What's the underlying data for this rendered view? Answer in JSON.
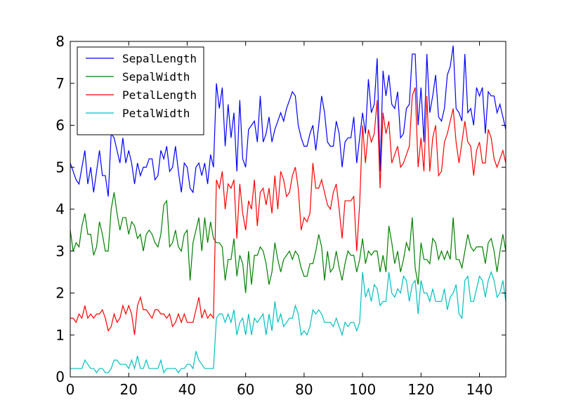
{
  "chart_data": {
    "type": "line",
    "title": "",
    "xlabel": "",
    "ylabel": "",
    "xlim": [
      0,
      149
    ],
    "ylim": [
      0,
      8
    ],
    "x_ticks": [
      0,
      20,
      40,
      60,
      80,
      100,
      120,
      140
    ],
    "y_ticks": [
      0,
      1,
      2,
      3,
      4,
      5,
      6,
      7,
      8
    ],
    "x_tick_labels": [
      "0",
      "20",
      "40",
      "60",
      "80",
      "100",
      "120",
      "140"
    ],
    "y_tick_labels": [
      "0",
      "1",
      "2",
      "3",
      "4",
      "5",
      "6",
      "7",
      "8"
    ],
    "grid": false,
    "legend_position": "top-left",
    "series": [
      {
        "name": "SepalLength",
        "color": "#0000ff",
        "values": [
          5.1,
          4.9,
          4.7,
          4.6,
          5.0,
          5.4,
          4.6,
          5.0,
          4.4,
          4.9,
          5.4,
          4.8,
          4.8,
          4.3,
          5.8,
          5.7,
          5.4,
          5.1,
          5.7,
          5.1,
          5.4,
          5.1,
          4.6,
          5.1,
          4.8,
          5.0,
          5.0,
          5.2,
          5.2,
          4.7,
          4.8,
          5.4,
          5.2,
          5.5,
          4.9,
          5.0,
          5.5,
          4.9,
          4.4,
          5.1,
          5.0,
          4.5,
          4.4,
          5.0,
          5.1,
          4.8,
          5.1,
          4.6,
          5.3,
          5.0,
          7.0,
          6.4,
          6.9,
          5.5,
          6.5,
          5.7,
          6.3,
          4.9,
          6.6,
          5.2,
          5.0,
          5.9,
          6.0,
          6.1,
          5.6,
          6.7,
          5.6,
          5.8,
          6.2,
          5.6,
          5.9,
          6.1,
          6.3,
          6.1,
          6.4,
          6.6,
          6.8,
          6.7,
          6.0,
          5.7,
          5.5,
          5.5,
          5.8,
          6.0,
          5.4,
          6.0,
          6.7,
          6.3,
          5.6,
          5.5,
          5.5,
          6.1,
          5.8,
          5.0,
          5.6,
          5.7,
          5.7,
          6.2,
          5.1,
          5.7,
          6.3,
          5.8,
          7.1,
          6.3,
          6.5,
          7.6,
          4.9,
          7.3,
          6.7,
          7.2,
          6.5,
          6.4,
          6.8,
          5.7,
          5.8,
          6.4,
          6.5,
          7.7,
          7.7,
          6.0,
          6.9,
          5.6,
          7.7,
          6.3,
          6.7,
          7.2,
          6.2,
          6.1,
          6.4,
          7.2,
          7.4,
          7.9,
          6.4,
          6.3,
          6.1,
          7.7,
          6.3,
          6.4,
          6.0,
          6.9,
          6.7,
          6.9,
          5.8,
          6.8,
          6.7,
          6.7,
          6.3,
          6.5,
          6.2,
          5.9
        ]
      },
      {
        "name": "SepalWidth",
        "color": "#008000",
        "values": [
          3.5,
          3.0,
          3.2,
          3.1,
          3.6,
          3.9,
          3.4,
          3.4,
          2.9,
          3.1,
          3.7,
          3.4,
          3.0,
          3.0,
          4.0,
          4.4,
          3.9,
          3.5,
          3.8,
          3.8,
          3.4,
          3.7,
          3.6,
          3.3,
          3.4,
          3.0,
          3.4,
          3.5,
          3.4,
          3.2,
          3.1,
          3.4,
          4.1,
          4.2,
          3.1,
          3.2,
          3.5,
          3.1,
          3.0,
          3.4,
          3.5,
          2.3,
          3.2,
          3.5,
          3.8,
          3.0,
          3.8,
          3.2,
          3.7,
          3.3,
          3.2,
          3.2,
          3.1,
          2.3,
          2.8,
          2.8,
          3.3,
          2.4,
          2.9,
          2.7,
          2.0,
          3.0,
          2.2,
          2.9,
          2.9,
          3.1,
          3.0,
          2.7,
          2.2,
          2.5,
          3.2,
          2.8,
          2.5,
          2.8,
          2.9,
          3.0,
          2.8,
          3.0,
          2.9,
          2.6,
          2.4,
          2.4,
          2.7,
          2.7,
          3.0,
          3.4,
          3.1,
          2.3,
          3.0,
          2.5,
          2.6,
          3.0,
          2.6,
          2.3,
          2.7,
          3.0,
          2.9,
          2.9,
          2.5,
          2.8,
          3.3,
          2.7,
          3.0,
          2.9,
          3.0,
          3.0,
          2.5,
          2.9,
          2.5,
          3.6,
          3.2,
          2.7,
          3.0,
          2.5,
          2.8,
          3.2,
          3.0,
          3.8,
          2.6,
          2.2,
          3.2,
          2.8,
          2.8,
          2.7,
          3.3,
          3.2,
          2.8,
          3.0,
          2.8,
          3.0,
          2.8,
          3.8,
          2.8,
          2.8,
          2.6,
          3.0,
          3.4,
          3.1,
          3.0,
          3.1,
          3.1,
          3.1,
          2.7,
          3.2,
          3.3,
          3.0,
          2.5,
          3.0,
          3.4,
          3.0
        ]
      },
      {
        "name": "PetalLength",
        "color": "#ff0000",
        "values": [
          1.4,
          1.4,
          1.3,
          1.5,
          1.4,
          1.7,
          1.4,
          1.5,
          1.4,
          1.5,
          1.5,
          1.6,
          1.4,
          1.1,
          1.2,
          1.5,
          1.3,
          1.4,
          1.7,
          1.5,
          1.7,
          1.5,
          1.0,
          1.7,
          1.9,
          1.6,
          1.6,
          1.5,
          1.4,
          1.6,
          1.6,
          1.5,
          1.5,
          1.4,
          1.5,
          1.2,
          1.3,
          1.5,
          1.3,
          1.5,
          1.3,
          1.3,
          1.3,
          1.6,
          1.9,
          1.4,
          1.6,
          1.4,
          1.5,
          1.4,
          4.7,
          4.5,
          4.9,
          4.0,
          4.6,
          4.5,
          4.7,
          3.3,
          4.6,
          3.9,
          3.5,
          4.2,
          4.0,
          4.7,
          3.6,
          4.4,
          4.5,
          4.1,
          4.5,
          3.9,
          4.8,
          4.0,
          4.9,
          4.7,
          4.3,
          4.4,
          4.8,
          5.0,
          4.5,
          3.5,
          3.8,
          3.7,
          3.9,
          5.1,
          4.5,
          4.5,
          4.7,
          4.4,
          4.1,
          4.0,
          4.4,
          4.6,
          4.0,
          3.3,
          4.2,
          4.2,
          4.2,
          4.3,
          3.0,
          4.1,
          6.0,
          5.1,
          5.9,
          5.6,
          5.8,
          6.6,
          4.5,
          6.3,
          5.8,
          6.1,
          5.1,
          5.3,
          5.5,
          5.0,
          5.1,
          5.3,
          5.5,
          6.7,
          6.9,
          5.0,
          5.7,
          4.9,
          6.7,
          4.9,
          5.7,
          6.0,
          4.8,
          4.9,
          5.6,
          5.8,
          6.1,
          6.4,
          5.6,
          5.1,
          5.6,
          6.1,
          5.6,
          5.5,
          4.8,
          5.4,
          5.6,
          5.1,
          5.1,
          5.9,
          5.7,
          5.2,
          5.0,
          5.2,
          5.4,
          5.1
        ]
      },
      {
        "name": "PetalWidth",
        "color": "#00bfbf",
        "values": [
          0.2,
          0.2,
          0.2,
          0.2,
          0.2,
          0.4,
          0.3,
          0.2,
          0.2,
          0.1,
          0.2,
          0.2,
          0.1,
          0.1,
          0.2,
          0.4,
          0.4,
          0.3,
          0.3,
          0.3,
          0.2,
          0.4,
          0.2,
          0.5,
          0.2,
          0.2,
          0.4,
          0.2,
          0.2,
          0.2,
          0.2,
          0.4,
          0.1,
          0.2,
          0.2,
          0.2,
          0.2,
          0.1,
          0.2,
          0.2,
          0.3,
          0.3,
          0.2,
          0.6,
          0.4,
          0.3,
          0.2,
          0.2,
          0.2,
          0.2,
          1.4,
          1.5,
          1.5,
          1.3,
          1.5,
          1.3,
          1.6,
          1.0,
          1.3,
          1.4,
          1.0,
          1.5,
          1.0,
          1.4,
          1.3,
          1.4,
          1.5,
          1.0,
          1.5,
          1.1,
          1.8,
          1.3,
          1.5,
          1.2,
          1.3,
          1.4,
          1.4,
          1.7,
          1.5,
          1.0,
          1.1,
          1.0,
          1.2,
          1.6,
          1.5,
          1.6,
          1.5,
          1.3,
          1.3,
          1.3,
          1.2,
          1.4,
          1.2,
          1.0,
          1.3,
          1.2,
          1.3,
          1.3,
          1.1,
          1.3,
          2.5,
          1.9,
          2.1,
          1.8,
          2.2,
          2.1,
          1.7,
          1.8,
          1.8,
          2.5,
          2.0,
          1.9,
          2.1,
          2.0,
          2.4,
          2.3,
          1.8,
          2.2,
          2.3,
          1.5,
          2.3,
          2.0,
          2.0,
          1.8,
          2.1,
          1.8,
          1.8,
          1.8,
          2.1,
          1.6,
          1.9,
          2.0,
          2.2,
          1.5,
          1.4,
          2.3,
          2.4,
          1.8,
          1.8,
          2.1,
          2.4,
          2.3,
          1.9,
          2.3,
          2.5,
          2.3,
          1.9,
          2.0,
          2.3,
          1.8
        ]
      }
    ]
  }
}
